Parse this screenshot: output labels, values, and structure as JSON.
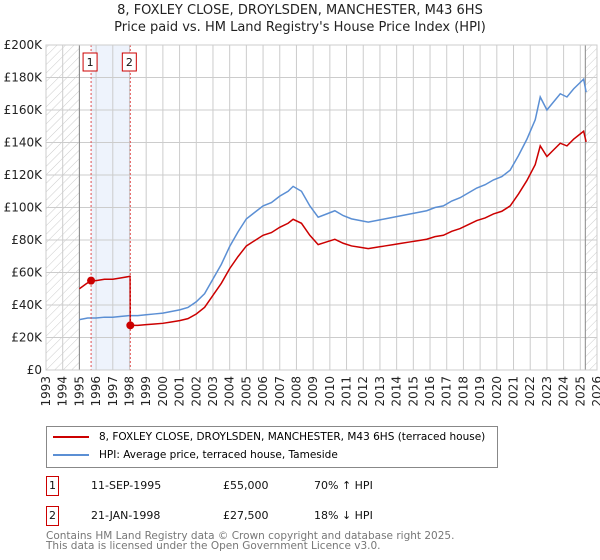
{
  "chart_data": {
    "type": "line",
    "title": "8, FOXLEY CLOSE, DROYLSDEN, MANCHESTER, M43 6HS",
    "subtitle": "Price paid vs. HM Land Registry's House Price Index (HPI)",
    "xlim": [
      1993,
      2026
    ],
    "ylim": [
      0,
      200000
    ],
    "x_ticks": [
      "1993",
      "1994",
      "1995",
      "1996",
      "1997",
      "1998",
      "1999",
      "2000",
      "2001",
      "2002",
      "2003",
      "2004",
      "2005",
      "2006",
      "2007",
      "2008",
      "2009",
      "2010",
      "2011",
      "2012",
      "2013",
      "2014",
      "2015",
      "2016",
      "2017",
      "2018",
      "2019",
      "2020",
      "2021",
      "2022",
      "2023",
      "2024",
      "2025",
      "2026"
    ],
    "y_ticks": [
      {
        "v": 0,
        "l": "£0"
      },
      {
        "v": 20000,
        "l": "£20K"
      },
      {
        "v": 40000,
        "l": "£40K"
      },
      {
        "v": 60000,
        "l": "£60K"
      },
      {
        "v": 80000,
        "l": "£80K"
      },
      {
        "v": 100000,
        "l": "£100K"
      },
      {
        "v": 120000,
        "l": "£120K"
      },
      {
        "v": 140000,
        "l": "£140K"
      },
      {
        "v": 160000,
        "l": "£160K"
      },
      {
        "v": 180000,
        "l": "£180K"
      },
      {
        "v": 200000,
        "l": "£200K"
      }
    ],
    "hpi": {
      "name": "HPI: Average price, terraced house, Tameside",
      "color": "#5b8fd4",
      "x": [
        1995,
        1995.5,
        1996,
        1996.5,
        1997,
        1997.5,
        1998,
        1998.5,
        1999,
        1999.5,
        2000,
        2000.5,
        2001,
        2001.5,
        2002,
        2002.5,
        2003,
        2003.5,
        2004,
        2004.5,
        2005,
        2005.5,
        2006,
        2006.5,
        2007,
        2007.5,
        2007.8,
        2008.3,
        2008.8,
        2009.3,
        2009.8,
        2010.3,
        2010.8,
        2011.3,
        2011.8,
        2012.3,
        2012.8,
        2013.3,
        2013.8,
        2014.3,
        2014.8,
        2015.3,
        2015.8,
        2016.3,
        2016.8,
        2017.3,
        2017.8,
        2018.3,
        2018.8,
        2019.3,
        2019.8,
        2020.3,
        2020.8,
        2021.3,
        2021.8,
        2022.3,
        2022.6,
        2023,
        2023.4,
        2023.8,
        2024.2,
        2024.6,
        2025,
        2025.2,
        2025.35
      ],
      "y": [
        31000,
        32000,
        32000,
        32500,
        32500,
        33000,
        33500,
        33500,
        34000,
        34500,
        35000,
        36000,
        37000,
        38500,
        42000,
        47000,
        56000,
        65000,
        76000,
        85000,
        93000,
        97000,
        101000,
        103000,
        107000,
        110000,
        113000,
        110000,
        101000,
        94000,
        96000,
        98000,
        95000,
        93000,
        92000,
        91000,
        92000,
        93000,
        94000,
        95000,
        96000,
        97000,
        98000,
        100000,
        101000,
        104000,
        106000,
        109000,
        112000,
        114000,
        117000,
        119000,
        123000,
        132000,
        142000,
        154000,
        168000,
        160000,
        165000,
        170000,
        168000,
        173000,
        177000,
        179000,
        171000
      ]
    },
    "price_paid": {
      "name": "8, FOXLEY CLOSE, DROYLSDEN, MANCHESTER, M43 6HS (terraced house)",
      "color": "#cc0000"
    },
    "sales": [
      {
        "n": "1",
        "x": 1995.7,
        "price": 55000
      },
      {
        "n": "2",
        "x": 1998.05,
        "price": 27500
      }
    ]
  },
  "legend": {
    "red": "8, FOXLEY CLOSE, DROYLSDEN, MANCHESTER, M43 6HS (terraced house)",
    "blue": "HPI: Average price, terraced house, Tameside"
  },
  "table": [
    {
      "n": "1",
      "date": "11-SEP-1995",
      "price": "£55,000",
      "hpi": "70% ↑ HPI"
    },
    {
      "n": "2",
      "date": "21-JAN-1998",
      "price": "£27,500",
      "hpi": "18% ↓ HPI"
    }
  ],
  "footer": [
    "Contains HM Land Registry data © Crown copyright and database right 2025.",
    "This data is licensed under the Open Government Licence v3.0."
  ]
}
